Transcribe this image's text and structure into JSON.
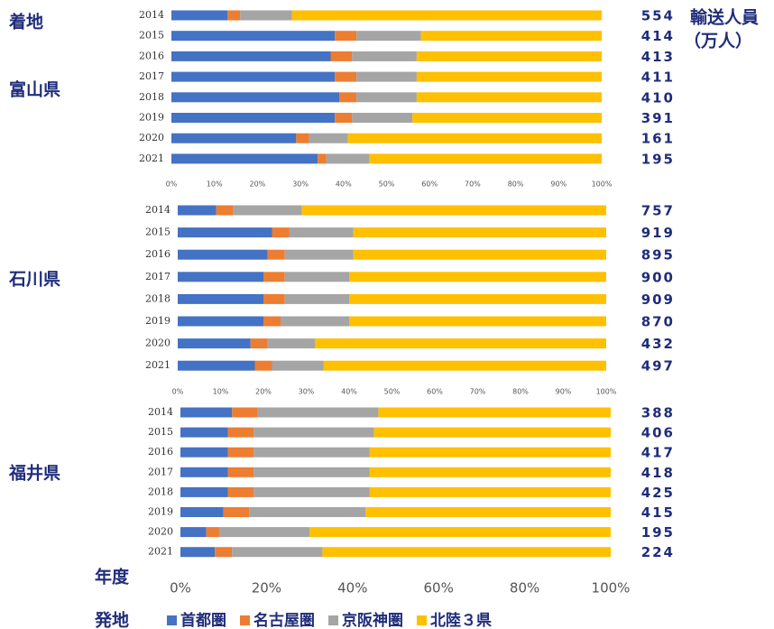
{
  "arrival_label": "着地",
  "volume_label_1": "輸送人員",
  "volume_label_2": "（万人）",
  "year_label": "年度",
  "origin_label": "発地",
  "chart_data": [
    {
      "type": "bar",
      "label": "富山県",
      "categories": [
        "2014",
        "2015",
        "2016",
        "2017",
        "2018",
        "2019",
        "2020",
        "2021"
      ],
      "series": [
        {
          "name": "首都圏",
          "color": "#4472c4",
          "values": [
            13,
            38,
            37,
            38,
            39,
            38,
            29,
            34
          ]
        },
        {
          "name": "名古屋圏",
          "color": "#ed7d31",
          "values": [
            3,
            5,
            5,
            5,
            4,
            4,
            3,
            2
          ]
        },
        {
          "name": "京阪神圏",
          "color": "#a5a5a5",
          "values": [
            12,
            15,
            15,
            14,
            14,
            14,
            9,
            10
          ]
        },
        {
          "name": "北陸３県",
          "color": "#ffc000",
          "values": [
            72,
            42,
            43,
            43,
            43,
            44,
            59,
            54
          ]
        }
      ],
      "totals": [
        554,
        414,
        413,
        411,
        410,
        391,
        161,
        195
      ],
      "xlim": [
        0,
        100
      ],
      "xticks": [
        {
          "value": 0,
          "label": "0%"
        },
        {
          "value": 10,
          "label": "10%"
        },
        {
          "value": 20,
          "label": "20%"
        },
        {
          "value": 30,
          "label": "30%"
        },
        {
          "value": 40,
          "label": "40%"
        },
        {
          "value": 50,
          "label": "50%"
        },
        {
          "value": 60,
          "label": "60%"
        },
        {
          "value": 70,
          "label": "70%"
        },
        {
          "value": 80,
          "label": "80%"
        },
        {
          "value": 90,
          "label": "90%"
        },
        {
          "value": 100,
          "label": "100%"
        }
      ]
    },
    {
      "type": "bar",
      "label": "石川県",
      "categories": [
        "2014",
        "2015",
        "2016",
        "2017",
        "2018",
        "2019",
        "2020",
        "2021"
      ],
      "series": [
        {
          "name": "首都圏",
          "color": "#4472c4",
          "values": [
            9,
            22,
            21,
            20,
            20,
            20,
            17,
            18
          ]
        },
        {
          "name": "名古屋圏",
          "color": "#ed7d31",
          "values": [
            4,
            4,
            4,
            5,
            5,
            4,
            4,
            4
          ]
        },
        {
          "name": "京阪神圏",
          "color": "#a5a5a5",
          "values": [
            16,
            15,
            16,
            15,
            15,
            16,
            11,
            12
          ]
        },
        {
          "name": "北陸３県",
          "color": "#ffc000",
          "values": [
            71,
            59,
            59,
            60,
            60,
            60,
            68,
            66
          ]
        }
      ],
      "totals": [
        757,
        919,
        895,
        900,
        909,
        870,
        432,
        497
      ],
      "xlim": [
        0,
        100
      ],
      "xticks": [
        {
          "value": 0,
          "label": "0%"
        },
        {
          "value": 10,
          "label": "10%"
        },
        {
          "value": 20,
          "label": "20%"
        },
        {
          "value": 30,
          "label": "30%"
        },
        {
          "value": 40,
          "label": "40%"
        },
        {
          "value": 50,
          "label": "50%"
        },
        {
          "value": 60,
          "label": "60%"
        },
        {
          "value": 70,
          "label": "70%"
        },
        {
          "value": 80,
          "label": "80%"
        },
        {
          "value": 90,
          "label": "90%"
        },
        {
          "value": 100,
          "label": "100%"
        }
      ]
    },
    {
      "type": "bar",
      "label": "福井県",
      "categories": [
        "2014",
        "2015",
        "2016",
        "2017",
        "2018",
        "2019",
        "2020",
        "2021"
      ],
      "series": [
        {
          "name": "首都圏",
          "color": "#4472c4",
          "values": [
            12,
            11,
            11,
            11,
            11,
            10,
            6,
            8
          ]
        },
        {
          "name": "名古屋圏",
          "color": "#ed7d31",
          "values": [
            6,
            6,
            6,
            6,
            6,
            6,
            3,
            4
          ]
        },
        {
          "name": "京阪神圏",
          "color": "#a5a5a5",
          "values": [
            28,
            28,
            27,
            27,
            27,
            27,
            21,
            21
          ]
        },
        {
          "name": "北陸３県",
          "color": "#ffc000",
          "values": [
            54,
            55,
            56,
            56,
            56,
            57,
            70,
            67
          ]
        }
      ],
      "totals": [
        388,
        406,
        417,
        418,
        425,
        415,
        195,
        224
      ],
      "xlim": [
        0,
        100
      ],
      "xticks": [
        {
          "value": 0,
          "label": "0%"
        },
        {
          "value": 20,
          "label": "20%"
        },
        {
          "value": 40,
          "label": "40%"
        },
        {
          "value": 60,
          "label": "60%"
        },
        {
          "value": 80,
          "label": "80%"
        },
        {
          "value": 100,
          "label": "100%"
        }
      ]
    }
  ]
}
